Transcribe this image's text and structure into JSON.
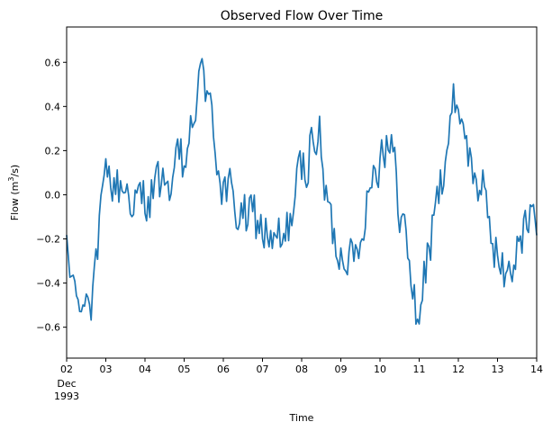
{
  "chart_data": {
    "type": "line",
    "title": "Observed Flow Over Time",
    "xlabel": "Time",
    "ylabel_main": "Flow (m",
    "ylabel_sup": "3",
    "ylabel_tail": "/s)",
    "x_tick_labels": [
      "02",
      "03",
      "04",
      "05",
      "06",
      "07",
      "08",
      "09",
      "10",
      "11",
      "12",
      "13",
      "14"
    ],
    "x_tick_sublabels": [
      "Dec",
      "1993"
    ],
    "x_range_days": [
      2,
      14
    ],
    "y_ticks": [
      -0.6,
      -0.4,
      -0.2,
      0.0,
      0.2,
      0.4,
      0.6
    ],
    "y_tick_labels": [
      "−0.6",
      "−0.4",
      "−0.2",
      "0.0",
      "0.2",
      "0.4",
      "0.6"
    ],
    "ylim": [
      -0.74,
      0.76
    ],
    "grid": false,
    "series": [
      {
        "color": "#1f77b4",
        "anchors": [
          [
            2.0,
            -0.28
          ],
          [
            2.1,
            -0.38
          ],
          [
            2.25,
            -0.42
          ],
          [
            2.4,
            -0.52
          ],
          [
            2.55,
            -0.45
          ],
          [
            2.7,
            -0.35
          ],
          [
            2.85,
            -0.15
          ],
          [
            3.0,
            0.02
          ],
          [
            3.15,
            0.08
          ],
          [
            3.3,
            0.02
          ],
          [
            3.5,
            0.05
          ],
          [
            3.75,
            -0.05
          ],
          [
            4.0,
            0.0
          ],
          [
            4.25,
            0.02
          ],
          [
            4.5,
            0.05
          ],
          [
            4.75,
            0.1
          ],
          [
            5.0,
            0.12
          ],
          [
            5.2,
            0.3
          ],
          [
            5.4,
            0.52
          ],
          [
            5.5,
            0.6
          ],
          [
            5.65,
            0.38
          ],
          [
            5.85,
            0.15
          ],
          [
            6.0,
            0.05
          ],
          [
            6.25,
            -0.05
          ],
          [
            6.5,
            -0.1
          ],
          [
            6.75,
            -0.12
          ],
          [
            7.0,
            -0.15
          ],
          [
            7.25,
            -0.2
          ],
          [
            7.5,
            -0.25
          ],
          [
            7.7,
            -0.12
          ],
          [
            7.9,
            0.05
          ],
          [
            8.1,
            0.15
          ],
          [
            8.3,
            0.3
          ],
          [
            8.45,
            0.25
          ],
          [
            8.6,
            0.0
          ],
          [
            8.8,
            -0.18
          ],
          [
            9.0,
            -0.25
          ],
          [
            9.15,
            -0.22
          ],
          [
            9.3,
            -0.35
          ],
          [
            9.45,
            -0.2
          ],
          [
            9.6,
            -0.05
          ],
          [
            9.8,
            0.1
          ],
          [
            10.0,
            0.18
          ],
          [
            10.15,
            0.28
          ],
          [
            10.3,
            0.2
          ],
          [
            10.5,
            -0.05
          ],
          [
            10.7,
            -0.25
          ],
          [
            10.85,
            -0.45
          ],
          [
            10.95,
            -0.58
          ],
          [
            11.1,
            -0.4
          ],
          [
            11.3,
            -0.2
          ],
          [
            11.5,
            0.0
          ],
          [
            11.7,
            0.22
          ],
          [
            11.85,
            0.38
          ],
          [
            12.0,
            0.45
          ],
          [
            12.15,
            0.35
          ],
          [
            12.35,
            0.1
          ],
          [
            12.55,
            0.05
          ],
          [
            12.75,
            -0.1
          ],
          [
            12.9,
            -0.2
          ],
          [
            13.05,
            -0.3
          ],
          [
            13.2,
            -0.4
          ],
          [
            13.35,
            -0.32
          ],
          [
            13.55,
            -0.25
          ],
          [
            13.75,
            -0.15
          ],
          [
            13.9,
            -0.05
          ],
          [
            14.0,
            -0.08
          ]
        ]
      }
    ]
  }
}
